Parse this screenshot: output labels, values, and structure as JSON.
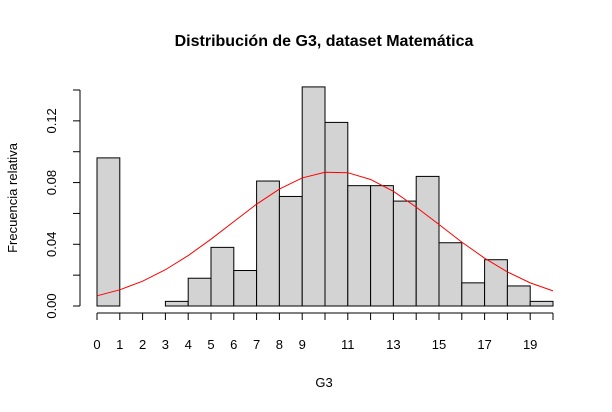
{
  "chart_data": {
    "type": "histogram",
    "title": "Distribución de G3, dataset Matemática",
    "xlabel": "G3",
    "ylabel": "Frecuencia relativa",
    "bins": [
      0,
      1,
      2,
      3,
      4,
      5,
      6,
      7,
      8,
      9,
      10,
      11,
      12,
      13,
      14,
      15,
      16,
      17,
      18,
      19,
      20
    ],
    "values": [
      0.096,
      0,
      0,
      0.003,
      0.018,
      0.038,
      0.023,
      0.081,
      0.071,
      0.142,
      0.119,
      0.078,
      0.078,
      0.068,
      0.084,
      0.041,
      0.015,
      0.03,
      0.013,
      0.003
    ],
    "color": "#d3d3d3",
    "curve": {
      "type": "line",
      "color": "#ff0000",
      "x": [
        0,
        1,
        2,
        3,
        4,
        5,
        6,
        7,
        8,
        9,
        10,
        11,
        12,
        13,
        14,
        15,
        16,
        17,
        18,
        19,
        20
      ],
      "values": [
        0.0066,
        0.0105,
        0.0161,
        0.0235,
        0.0327,
        0.0433,
        0.0547,
        0.066,
        0.0758,
        0.083,
        0.0867,
        0.0864,
        0.082,
        0.0743,
        0.0641,
        0.0528,
        0.0414,
        0.031,
        0.0221,
        0.015,
        0.0098
      ]
    },
    "xlim": [
      0,
      20
    ],
    "ylim": [
      0,
      0.14
    ],
    "xticks": [
      0,
      1,
      2,
      3,
      4,
      5,
      6,
      7,
      8,
      9,
      11,
      13,
      15,
      17,
      19
    ],
    "xticks_unlabeled": [
      10,
      12,
      14,
      16,
      18,
      20
    ],
    "yticks": [
      {
        "value": 0,
        "label": "0.00"
      },
      {
        "value": 0.04,
        "label": "0.04"
      },
      {
        "value": 0.08,
        "label": "0.08"
      },
      {
        "value": 0.12,
        "label": "0.12"
      }
    ],
    "yticks_unlabeled": [
      0.02,
      0.06,
      0.1,
      0.14
    ]
  }
}
